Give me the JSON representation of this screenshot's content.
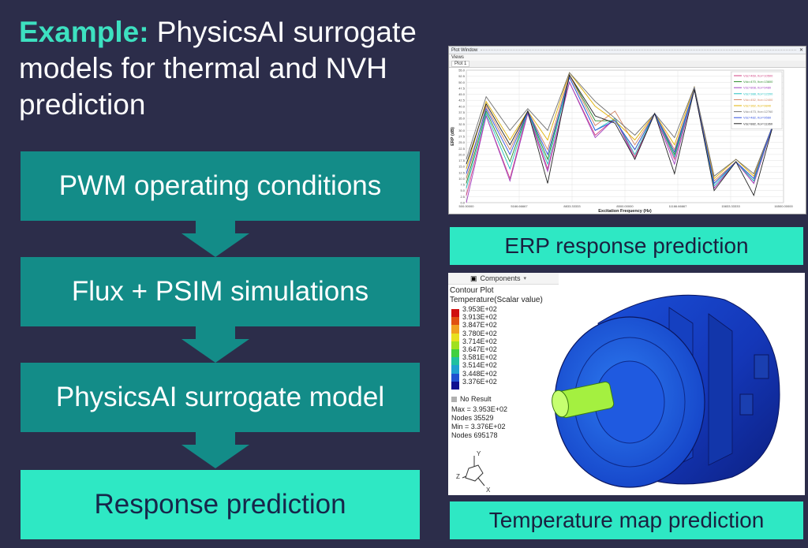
{
  "title": {
    "prefix": "Example:",
    "text": "PhysicsAI surrogate models for thermal and NVH prediction"
  },
  "steps": [
    {
      "label": "PWM operating conditions"
    },
    {
      "label": "Flux + PSIM simulations"
    },
    {
      "label": "PhysicsAI surrogate model"
    },
    {
      "label": "Response prediction"
    }
  ],
  "erp_panel": {
    "window_title": "Plot Window",
    "views_label": "Views",
    "tab_label": "Plot 1",
    "caption": "ERP response prediction"
  },
  "chart_data": {
    "type": "line",
    "xlabel": "Excitation Frequency (Hz)",
    "ylabel": "ERP (dB)",
    "xlim": [
      500,
      16500
    ],
    "ylim": [
      0,
      55
    ],
    "x_ticks": [
      "500.00000",
      "5166.66667",
      "8833.33333",
      "8500.00000",
      "11166.66667",
      "15833.33333",
      "16500.00000"
    ],
    "y_ticks": [
      "0.0",
      "2.5",
      "5.0",
      "7.5",
      "10.0",
      "12.5",
      "15.0",
      "17.5",
      "20.0",
      "22.5",
      "25.0",
      "27.5",
      "30.0",
      "32.5",
      "35.0",
      "37.5",
      "40.0",
      "42.5",
      "45.0",
      "47.5",
      "50.0",
      "52.5",
      "55.0"
    ],
    "x": [
      500,
      1500,
      2700,
      3600,
      4600,
      5700,
      7000,
      8000,
      9000,
      10000,
      11000,
      12000,
      13000,
      14100,
      15000,
      16000
    ],
    "series": [
      {
        "name": "Vdc=469, Itor=10500",
        "color": "#d04080",
        "values": [
          3,
          36,
          10,
          38,
          14,
          50,
          28,
          35,
          19,
          37,
          18,
          47,
          6,
          17,
          8,
          33
        ]
      },
      {
        "name": "Vdc=470, Itor=13600",
        "color": "#2a8a2a",
        "values": [
          8,
          38,
          17,
          38,
          18,
          53,
          34,
          34,
          22,
          37,
          20,
          47,
          8,
          17,
          9,
          33
        ]
      },
      {
        "name": "Vdc=808, Itor=9480",
        "color": "#a040c0",
        "values": [
          0,
          36,
          9,
          37,
          13,
          50,
          27,
          35,
          18,
          37,
          16,
          47,
          6,
          17,
          8,
          33
        ]
      },
      {
        "name": "Vdc=388, Itor=12200",
        "color": "#20c0c0",
        "values": [
          6,
          37,
          14,
          38,
          16,
          52,
          30,
          35,
          20,
          37,
          19,
          47,
          7,
          17,
          9,
          33
        ]
      },
      {
        "name": "Vdc=452, Itor=12400",
        "color": "#d08060",
        "values": [
          10,
          40,
          22,
          38,
          22,
          53,
          32,
          38,
          24,
          37,
          22,
          47,
          9,
          17,
          10,
          33
        ]
      },
      {
        "name": "Vdc=362, Itor=9840",
        "color": "#e0b000",
        "values": [
          14,
          42,
          26,
          38,
          26,
          54,
          40,
          34,
          26,
          37,
          24,
          48,
          10,
          18,
          11,
          33
        ]
      },
      {
        "name": "Vdc=473, Itor=12760",
        "color": "#707070",
        "values": [
          18,
          44,
          30,
          39,
          30,
          54,
          42,
          35,
          28,
          37,
          27,
          48,
          11,
          18,
          12,
          33
        ]
      },
      {
        "name": "Vdc=482, Itor=9560",
        "color": "#3050e0",
        "values": [
          12,
          39,
          20,
          38,
          20,
          52,
          30,
          34,
          22,
          37,
          21,
          47,
          8,
          17,
          10,
          33
        ]
      },
      {
        "name": "Vdc=882, Itor=11360",
        "color": "#202020",
        "values": [
          16,
          41,
          24,
          38,
          8,
          53,
          36,
          33,
          18,
          37,
          12,
          47,
          5,
          17,
          3,
          33
        ]
      }
    ]
  },
  "thermal_panel": {
    "components_label": "Components",
    "contour_title": "Contour Plot",
    "contour_subtitle": "Temperature(Scalar value)",
    "legend_values": [
      "3.953E+02",
      "3.913E+02",
      "3.847E+02",
      "3.780E+02",
      "3.714E+02",
      "3.647E+02",
      "3.581E+02",
      "3.514E+02",
      "3.448E+02",
      "3.376E+02"
    ],
    "no_result": "No Result",
    "max_line": "Max =  3.953E+02",
    "max_nodes": "Nodes 35529",
    "min_line": "Min =  3.376E+02",
    "min_nodes": "Nodes 695178",
    "axis_y": "Y",
    "axis_z": "Z",
    "axis_x": "X",
    "caption": "Temperature map prediction",
    "colors": [
      "#d01010",
      "#e05010",
      "#f0a020",
      "#e8e020",
      "#a0e020",
      "#40d040",
      "#20c0a0",
      "#20a0d0",
      "#2050d0",
      "#101090"
    ]
  }
}
